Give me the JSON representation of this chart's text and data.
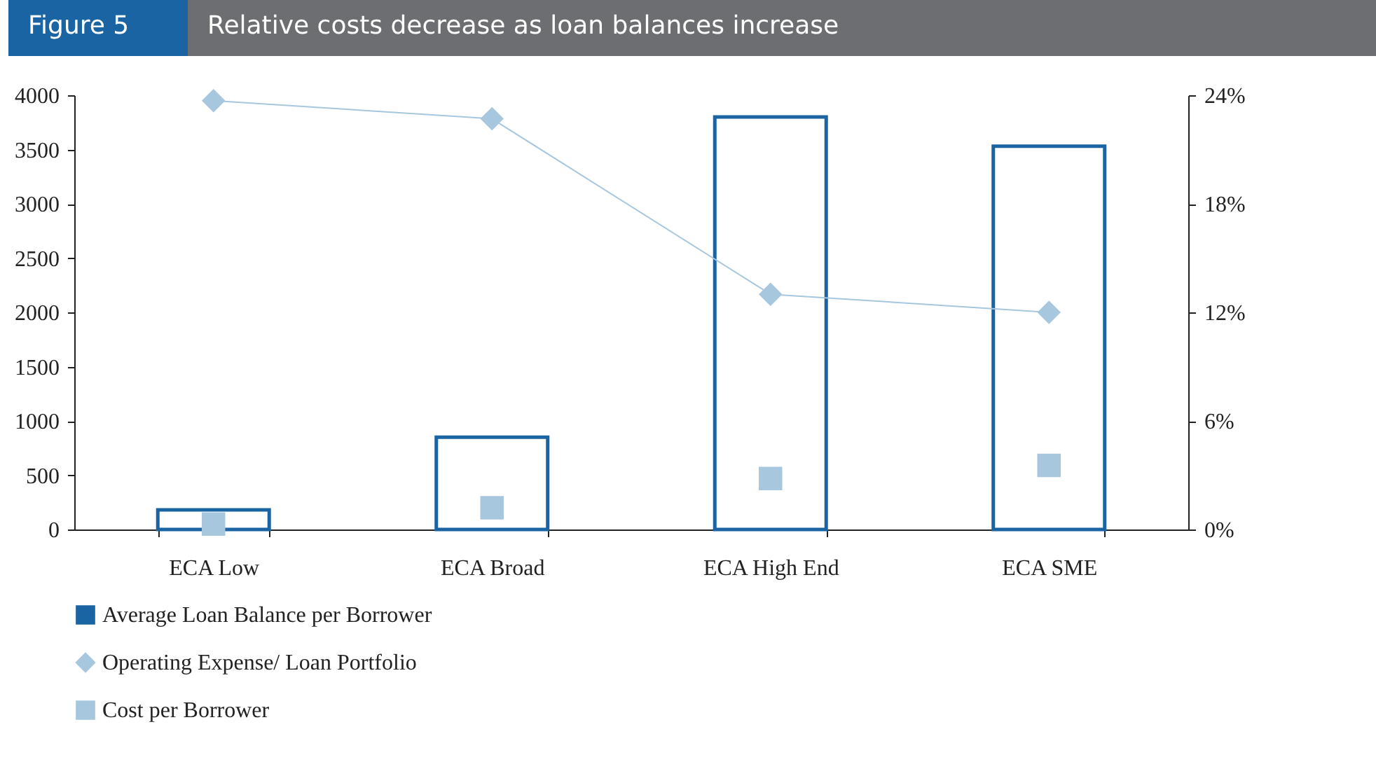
{
  "chart_data": {
    "type": "bar",
    "title": "Relative costs decrease as loan balances increase",
    "annotations": [
      "Figure 5"
    ],
    "categories": [
      "ECA Low",
      "ECA Broad",
      "ECA High End",
      "ECA SME"
    ],
    "series": [
      {
        "name": "Average Loan Balance per Borrower",
        "color": "#1a64a4",
        "values": [
          180,
          850,
          3800,
          3530
        ]
      },
      {
        "name": "Operating Expense/ Loan Portfolio",
        "type": "line",
        "axis": "y2",
        "marker": "diamond",
        "color": "#a7c7df",
        "values": [
          23.7,
          22.7,
          13.0,
          12.0
        ]
      },
      {
        "name": "Cost per Borrower",
        "type": "scatter",
        "marker": "square",
        "color": "#a7c7df",
        "values": [
          50,
          200,
          470,
          590
        ]
      }
    ],
    "ylim": [
      0,
      4000
    ],
    "yticks": [
      0,
      500,
      1000,
      1500,
      2000,
      2500,
      3000,
      3500,
      4000
    ],
    "y2lim": [
      0,
      24
    ],
    "y2ticks": [
      {
        "value": 0,
        "label": "0%"
      },
      {
        "value": 6,
        "label": "6%"
      },
      {
        "value": 12,
        "label": "12%"
      },
      {
        "value": 18,
        "label": "18%"
      },
      {
        "value": 24,
        "label": "24%"
      }
    ],
    "grid": false,
    "legend": "bottom"
  }
}
